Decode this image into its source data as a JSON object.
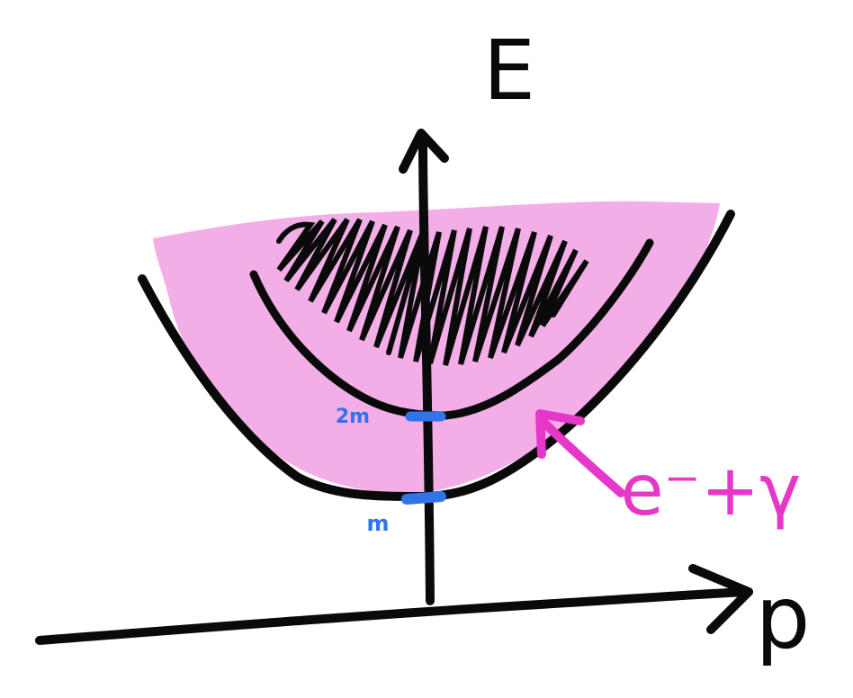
{
  "labels": {
    "energy_axis": "E",
    "momentum_axis": "p",
    "two_m": "2m",
    "m": "m",
    "annotation": "e⁻+γ"
  },
  "colors": {
    "ink": "#0a0a0a",
    "region_fill": "#f3aee7",
    "blue_marks": "#2f74e8",
    "annotation": "#e537c8"
  }
}
